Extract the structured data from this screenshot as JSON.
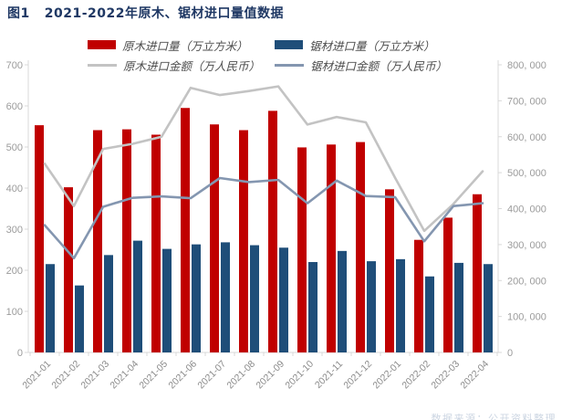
{
  "title": {
    "figure_label": "图1",
    "text": "2021-2022年原木、锯材进口量值数据"
  },
  "legend": [
    {
      "id": "log-volume",
      "swatch": "bar",
      "color": "#C00000",
      "label": "原木进口量（万立方米）"
    },
    {
      "id": "sawn-volume",
      "swatch": "bar",
      "color": "#1F4E79",
      "label": "锯材进口量（万立方米）"
    },
    {
      "id": "log-value",
      "swatch": "line",
      "color": "#C3C3C3",
      "label": "原木进口金额（万人民币）"
    },
    {
      "id": "sawn-value",
      "swatch": "line",
      "color": "#8496B0",
      "label": "锯材进口金额（万人民币）"
    }
  ],
  "watermark": "数据来源：公开资料整理",
  "colors": {
    "title": "#1F3864",
    "axis_line": "#D9D9D9",
    "axis_text": "#9b9b9b",
    "x_label_text": "#8a8a8a",
    "log_bar": "#C00000",
    "sawn_bar": "#1F4E79",
    "log_line": "#C3C3C3",
    "sawn_line": "#8496B0"
  },
  "chart_data": {
    "type": "bar",
    "subtype": "grouped-bars-with-lines-combo",
    "title": "2021-2022年原木、锯材进口量值数据",
    "xlabel": "",
    "ylabel_left": "万立方米",
    "ylabel_right": "万人民币",
    "grid": false,
    "legend_position": "top",
    "categories": [
      "2021-01",
      "2021-02",
      "2021-03",
      "2021-04",
      "2021-05",
      "2021-06",
      "2021-07",
      "2021-08",
      "2021-09",
      "2021-10",
      "2021-11",
      "2021-12",
      "2022-01",
      "2022-02",
      "2022-03",
      "2022-04"
    ],
    "series": [
      {
        "name": "原木进口量（万立方米）",
        "type": "bar",
        "axis": "left",
        "color": "#C00000",
        "values": [
          553,
          402,
          541,
          543,
          530,
          595,
          555,
          541,
          588,
          499,
          506,
          512,
          397,
          274,
          328,
          385
        ]
      },
      {
        "name": "锯材进口量（万立方米）",
        "type": "bar",
        "axis": "left",
        "color": "#1F4E79",
        "values": [
          215,
          163,
          237,
          272,
          252,
          263,
          268,
          261,
          255,
          220,
          247,
          222,
          227,
          185,
          218,
          215
        ]
      },
      {
        "name": "原木进口金额（万人民币）",
        "type": "line",
        "axis": "right",
        "color": "#C3C3C3",
        "values": [
          525000,
          407000,
          566000,
          580000,
          600000,
          736000,
          716000,
          727000,
          740000,
          634000,
          655000,
          640000,
          486000,
          338000,
          413000,
          504000
        ]
      },
      {
        "name": "锯材进口金额（万人民币）",
        "type": "line",
        "axis": "right",
        "color": "#8496B0",
        "values": [
          354000,
          262000,
          405000,
          430000,
          434000,
          429000,
          485000,
          474000,
          480000,
          415000,
          478000,
          435000,
          432000,
          309000,
          407000,
          415000
        ]
      }
    ],
    "left_axis": {
      "min": 0,
      "max": 700,
      "step": 100,
      "tick_labels": [
        "0",
        "100",
        "200",
        "300",
        "400",
        "500",
        "600",
        "700"
      ]
    },
    "right_axis": {
      "min": 0,
      "max": 800000,
      "step": 100000,
      "tick_labels": [
        "0",
        "100, 000",
        "200, 000",
        "300, 000",
        "400, 000",
        "500, 000",
        "600, 000",
        "700, 000",
        "800, 000"
      ]
    }
  }
}
